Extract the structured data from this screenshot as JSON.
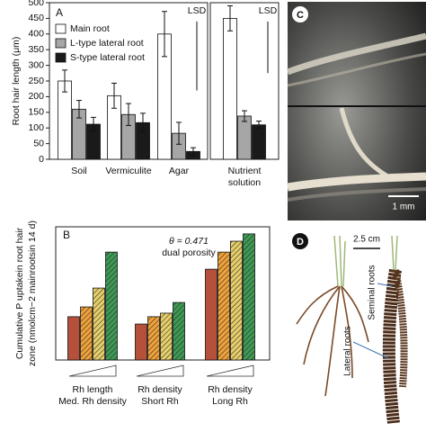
{
  "chart_data": [
    {
      "type": "bar",
      "label": "A",
      "ylabel": "Root hair length (μm)",
      "categories": [
        [
          "Soil"
        ],
        [
          "Vermiculite"
        ],
        [
          "Agar"
        ],
        [
          "Nutrient",
          "solution"
        ]
      ],
      "series": [
        {
          "name": "Main root",
          "color": "#ffffff",
          "values": [
            250,
            203,
            400,
            450
          ],
          "errors": [
            35,
            40,
            72,
            40
          ]
        },
        {
          "name": "L-type lateral root",
          "color": "#a6a6a6",
          "values": [
            160,
            143,
            83,
            138
          ],
          "errors": [
            28,
            35,
            35,
            17
          ]
        },
        {
          "name": "S-type lateral root",
          "color": "#1a1a1a",
          "values": [
            112,
            117,
            25,
            110
          ],
          "errors": [
            22,
            30,
            12,
            12
          ]
        }
      ],
      "ylim": [
        0,
        500
      ],
      "yticks": [
        0,
        50,
        100,
        150,
        200,
        250,
        300,
        350,
        400,
        450,
        500
      ],
      "legend": "upper left",
      "annotations": [
        {
          "text": "LSD",
          "range": [
            440,
            220
          ]
        },
        {
          "text": "LSD",
          "range": [
            440,
            275
          ]
        }
      ]
    },
    {
      "type": "bar",
      "label": "B",
      "ylabel": [
        "Cumulative P uptakein root hair",
        "zone (nmolcm−2 mainrootsin 14 d)"
      ],
      "categories": [
        [
          "Rh length",
          "Med. Rh density"
        ],
        [
          "Rh density",
          "Short Rh"
        ],
        [
          "Rh density",
          "Long Rh"
        ]
      ],
      "series": [
        {
          "color": "#b5513a",
          "hatch": false,
          "values": [
            19.5,
            16.2,
            40.9
          ]
        },
        {
          "color": "#f0a23a",
          "hatch": true,
          "values": [
            23.9,
            19.5,
            48.6
          ]
        },
        {
          "color": "#e6cf6a",
          "hatch": true,
          "values": [
            32.4,
            21.1,
            53.5
          ]
        },
        {
          "color": "#3f9a55",
          "hatch": true,
          "values": [
            48.6,
            25.9,
            56.8
          ]
        }
      ],
      "ylim": [
        0,
        60
      ],
      "notes": [
        "θ = 0.471",
        "dual porosity"
      ]
    }
  ],
  "photo_c": {
    "label": "C",
    "scale": "1 mm"
  },
  "photo_d": {
    "label": "D",
    "scale": "2.5 cm",
    "annotations": [
      "Seminal roots",
      "Lateral roots"
    ]
  }
}
